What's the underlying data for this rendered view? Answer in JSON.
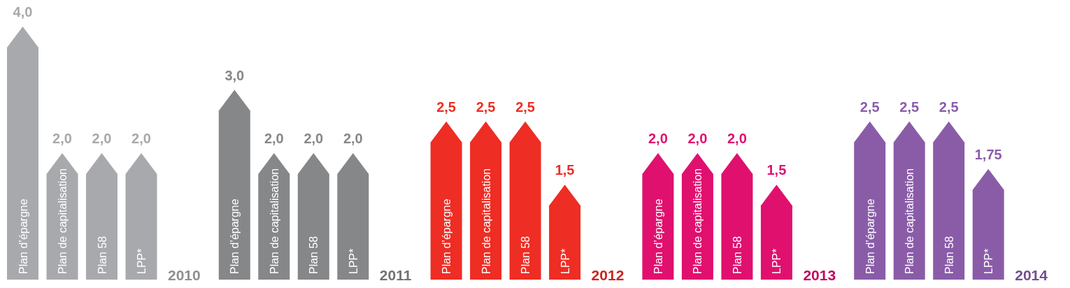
{
  "chart_data": [
    {
      "type": "bar",
      "title": "2010",
      "categories": [
        "Plan d’épargne",
        "Plan de capitalisation",
        "Plan 58",
        "LPP*"
      ],
      "values": [
        4.0,
        2.0,
        2.0,
        2.0
      ],
      "value_labels": [
        "4,0",
        "2,0",
        "2,0",
        "2,0"
      ],
      "color": "#a7a9ac"
    },
    {
      "type": "bar",
      "title": "2011",
      "categories": [
        "Plan d’épargne",
        "Plan de capitalisation",
        "Plan 58",
        "LPP*"
      ],
      "values": [
        3.0,
        2.0,
        2.0,
        2.0
      ],
      "value_labels": [
        "3,0",
        "2,0",
        "2,0",
        "2,0"
      ],
      "color": "#858789"
    },
    {
      "type": "bar",
      "title": "2012",
      "categories": [
        "Plan d’épargne",
        "Plan de capitalisation",
        "Plan 58",
        "LPP*"
      ],
      "values": [
        2.5,
        2.5,
        2.5,
        1.5
      ],
      "value_labels": [
        "2,5",
        "2,5",
        "2,5",
        "1,5"
      ],
      "color": "#ee2d24"
    },
    {
      "type": "bar",
      "title": "2013",
      "categories": [
        "Plan d’épargne",
        "Plan de capitalisation",
        "Plan 58",
        "LPP*"
      ],
      "values": [
        2.0,
        2.0,
        2.0,
        1.5
      ],
      "value_labels": [
        "2,0",
        "2,0",
        "2,0",
        "1,5"
      ],
      "color": "#e0106f"
    },
    {
      "type": "bar",
      "title": "2014",
      "categories": [
        "Plan d’épargne",
        "Plan de capitalisation",
        "Plan 58",
        "LPP*"
      ],
      "values": [
        2.5,
        2.5,
        2.5,
        1.75
      ],
      "value_labels": [
        "2,5",
        "2,5",
        "2,5",
        "1,75"
      ],
      "color": "#8a5ca8"
    }
  ]
}
